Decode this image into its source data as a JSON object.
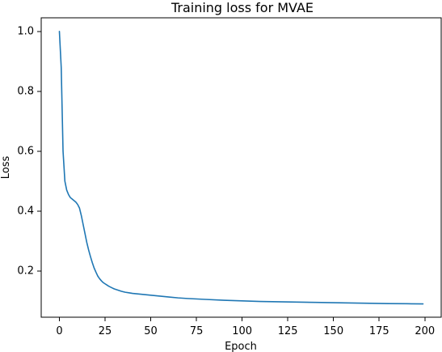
{
  "chart_data": {
    "type": "line",
    "title": "Training loss for MVAE",
    "xlabel": "Epoch",
    "ylabel": "Loss",
    "xlim": [
      -9.95,
      208.95
    ],
    "ylim": [
      0.0455,
      1.0455
    ],
    "xticks": [
      0,
      25,
      50,
      75,
      100,
      125,
      150,
      175,
      200
    ],
    "yticks": [
      0.2,
      0.4,
      0.6,
      0.8,
      1.0
    ],
    "ytick_labels": [
      "0.2",
      "0.4",
      "0.6",
      "0.8",
      "1.0"
    ],
    "grid": false,
    "legend": false,
    "colors": {
      "line": "#1f77b4"
    },
    "series": [
      {
        "x": [
          0,
          1,
          2,
          3,
          4,
          5,
          6,
          7,
          8,
          9,
          10,
          11,
          12,
          13,
          14,
          15,
          16,
          17,
          18,
          19,
          20,
          21,
          22,
          23,
          24,
          25,
          26,
          27,
          28,
          29,
          30,
          32,
          34,
          36,
          38,
          40,
          45,
          50,
          55,
          60,
          65,
          70,
          80,
          90,
          100,
          110,
          120,
          130,
          140,
          150,
          160,
          170,
          180,
          190,
          199
        ],
        "values": [
          1.0,
          0.88,
          0.6,
          0.5,
          0.47,
          0.455,
          0.445,
          0.44,
          0.435,
          0.43,
          0.422,
          0.41,
          0.385,
          0.355,
          0.325,
          0.295,
          0.27,
          0.248,
          0.228,
          0.21,
          0.196,
          0.183,
          0.174,
          0.167,
          0.161,
          0.157,
          0.153,
          0.149,
          0.146,
          0.143,
          0.14,
          0.136,
          0.132,
          0.129,
          0.127,
          0.125,
          0.122,
          0.119,
          0.116,
          0.113,
          0.11,
          0.108,
          0.105,
          0.102,
          0.1,
          0.098,
          0.097,
          0.096,
          0.095,
          0.094,
          0.093,
          0.092,
          0.091,
          0.0905,
          0.09
        ]
      }
    ]
  }
}
